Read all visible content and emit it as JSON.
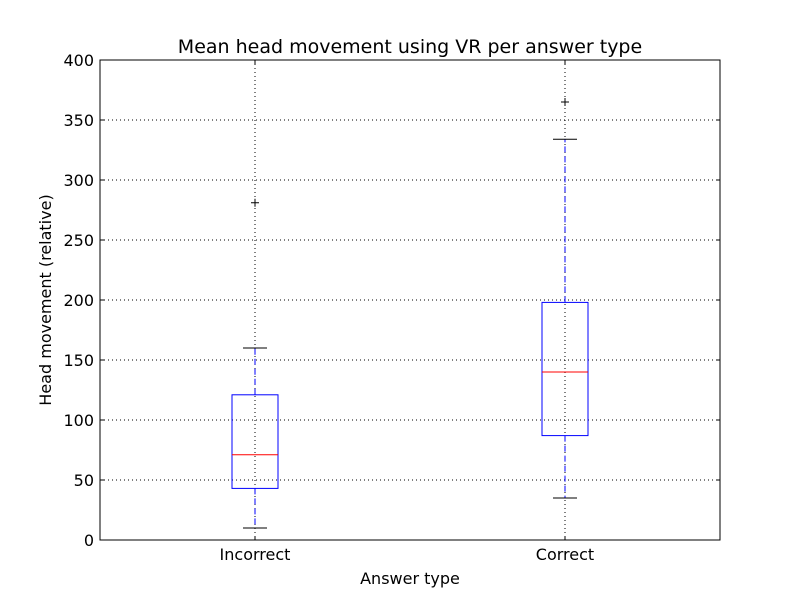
{
  "chart_data": {
    "type": "box",
    "title": "Mean head movement using VR per answer type",
    "xlabel": "Answer type",
    "ylabel": "Head movement (relative)",
    "ylim": [
      0,
      400
    ],
    "yticks": [
      0,
      50,
      100,
      150,
      200,
      250,
      300,
      350,
      400
    ],
    "grid": true,
    "categories": [
      "Incorrect",
      "Correct"
    ],
    "boxes": [
      {
        "category": "Incorrect",
        "whisker_low": 10,
        "q1": 43,
        "median": 71,
        "q3": 121,
        "whisker_high": 160,
        "outliers": [
          281
        ]
      },
      {
        "category": "Correct",
        "whisker_low": 35,
        "q1": 87,
        "median": 140,
        "q3": 198,
        "whisker_high": 334,
        "outliers": [
          365
        ]
      }
    ],
    "colors": {
      "box": "#0000ff",
      "median": "#ff0000",
      "whisker": "#0000ff",
      "cap": "#000000",
      "outlier": "#000000",
      "grid": "#000000"
    }
  }
}
